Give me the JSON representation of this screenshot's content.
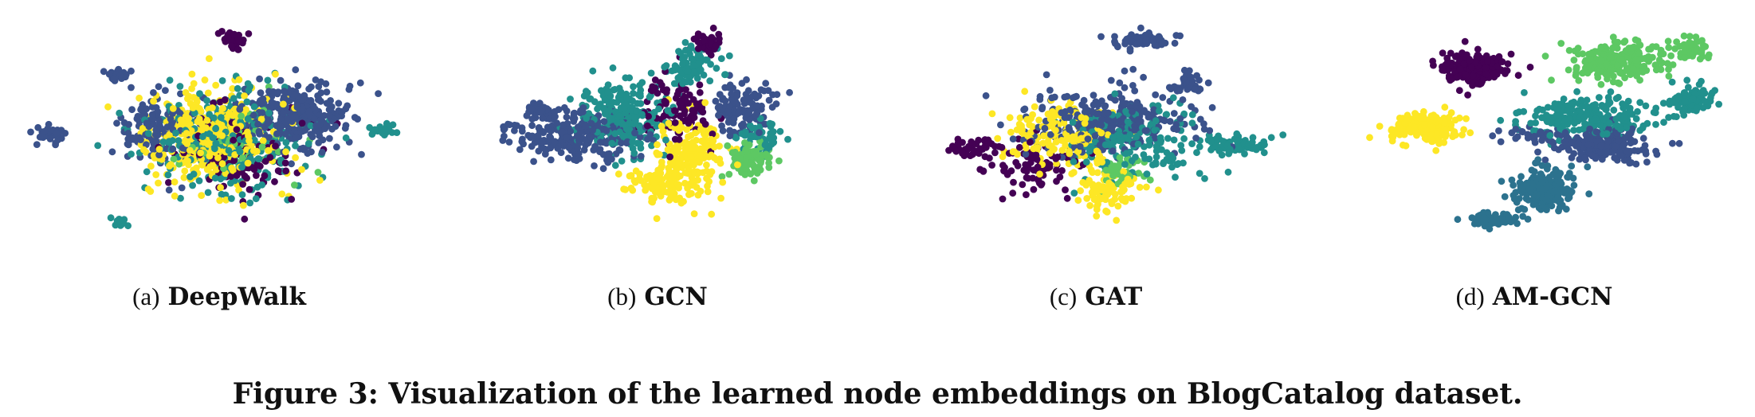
{
  "figure": {
    "caption": "Figure 3: Visualization of the learned node embeddings on BlogCatalog dataset."
  },
  "palette": [
    "#440154",
    "#3b528b",
    "#21908d",
    "#5dc863",
    "#fde725",
    "#2c728e"
  ],
  "chart_data": [
    {
      "type": "scatter",
      "sub_label": "(a)",
      "method": "DeepWalk",
      "xlabel": "",
      "ylabel": "",
      "grid": false,
      "legend": "none",
      "xlim": [
        0,
        100
      ],
      "ylim": [
        0,
        100
      ],
      "clusters": [
        {
          "class": 1,
          "x": 68,
          "y": 58,
          "sx": 12,
          "sy": 12,
          "n": 320
        },
        {
          "class": 4,
          "x": 47,
          "y": 50,
          "sx": 15,
          "sy": 17,
          "n": 300
        },
        {
          "class": 2,
          "x": 52,
          "y": 48,
          "sx": 17,
          "sy": 18,
          "n": 300
        },
        {
          "class": 0,
          "x": 55,
          "y": 42,
          "sx": 14,
          "sy": 16,
          "n": 120
        },
        {
          "class": 1,
          "x": 36,
          "y": 52,
          "sx": 10,
          "sy": 14,
          "n": 120
        },
        {
          "class": 3,
          "x": 55,
          "y": 47,
          "sx": 14,
          "sy": 15,
          "n": 50
        },
        {
          "class": 0,
          "x": 53,
          "y": 89,
          "sx": 3,
          "sy": 4,
          "n": 35
        },
        {
          "class": 1,
          "x": 26,
          "y": 74,
          "sx": 2.5,
          "sy": 2.5,
          "n": 30
        },
        {
          "class": 1,
          "x": 9,
          "y": 50,
          "sx": 3,
          "sy": 3,
          "n": 35
        },
        {
          "class": 2,
          "x": 89,
          "y": 52,
          "sx": 3,
          "sy": 2,
          "n": 25
        },
        {
          "class": 2,
          "x": 26,
          "y": 15,
          "sx": 2,
          "sy": 2,
          "n": 15
        },
        {
          "class": 4,
          "x": 53,
          "y": 46,
          "sx": 15,
          "sy": 17,
          "n": 60
        }
      ]
    },
    {
      "type": "scatter",
      "sub_label": "(b)",
      "method": "GCN",
      "xlabel": "",
      "ylabel": "",
      "grid": false,
      "legend": "none",
      "xlim": [
        0,
        100
      ],
      "ylim": [
        0,
        100
      ],
      "clusters": [
        {
          "class": 1,
          "x": 30,
          "y": 50,
          "sx": 14,
          "sy": 10,
          "n": 260
        },
        {
          "class": 2,
          "x": 42,
          "y": 58,
          "sx": 10,
          "sy": 14,
          "n": 220
        },
        {
          "class": 4,
          "x": 58,
          "y": 42,
          "sx": 8,
          "sy": 14,
          "n": 190
        },
        {
          "class": 0,
          "x": 55,
          "y": 62,
          "sx": 8,
          "sy": 12,
          "n": 100
        },
        {
          "class": 3,
          "x": 72,
          "y": 40,
          "sx": 5,
          "sy": 7,
          "n": 70
        },
        {
          "class": 1,
          "x": 70,
          "y": 62,
          "sx": 7,
          "sy": 9,
          "n": 120
        },
        {
          "class": 2,
          "x": 58,
          "y": 78,
          "sx": 5,
          "sy": 8,
          "n": 80
        },
        {
          "class": 0,
          "x": 62,
          "y": 88,
          "sx": 3,
          "sy": 4,
          "n": 40
        },
        {
          "class": 1,
          "x": 22,
          "y": 60,
          "sx": 3,
          "sy": 2,
          "n": 30
        },
        {
          "class": 4,
          "x": 50,
          "y": 30,
          "sx": 8,
          "sy": 6,
          "n": 70
        },
        {
          "class": 2,
          "x": 75,
          "y": 50,
          "sx": 5,
          "sy": 6,
          "n": 50
        }
      ]
    },
    {
      "type": "scatter",
      "sub_label": "(c)",
      "method": "GAT",
      "xlabel": "",
      "ylabel": "",
      "grid": false,
      "legend": "none",
      "xlim": [
        0,
        100
      ],
      "ylim": [
        0,
        100
      ],
      "clusters": [
        {
          "class": 1,
          "x": 52,
          "y": 55,
          "sx": 17,
          "sy": 12,
          "n": 300
        },
        {
          "class": 4,
          "x": 42,
          "y": 50,
          "sx": 11,
          "sy": 12,
          "n": 170
        },
        {
          "class": 2,
          "x": 60,
          "y": 48,
          "sx": 14,
          "sy": 14,
          "n": 170
        },
        {
          "class": 0,
          "x": 35,
          "y": 38,
          "sx": 10,
          "sy": 9,
          "n": 90
        },
        {
          "class": 4,
          "x": 54,
          "y": 28,
          "sx": 7,
          "sy": 8,
          "n": 80
        },
        {
          "class": 3,
          "x": 56,
          "y": 35,
          "sx": 6,
          "sy": 6,
          "n": 40
        },
        {
          "class": 2,
          "x": 84,
          "y": 46,
          "sx": 7,
          "sy": 3,
          "n": 70
        },
        {
          "class": 1,
          "x": 61,
          "y": 88,
          "sx": 8,
          "sy": 3,
          "n": 70
        },
        {
          "class": 1,
          "x": 72,
          "y": 70,
          "sx": 4,
          "sy": 5,
          "n": 40
        },
        {
          "class": 0,
          "x": 20,
          "y": 45,
          "sx": 5,
          "sy": 4,
          "n": 40
        }
      ]
    },
    {
      "type": "scatter",
      "sub_label": "(d)",
      "method": "AM-GCN",
      "xlabel": "",
      "ylabel": "",
      "grid": false,
      "legend": "none",
      "xlim": [
        0,
        100
      ],
      "ylim": [
        0,
        100
      ],
      "clusters": [
        {
          "class": 0,
          "x": 36,
          "y": 77,
          "sx": 7,
          "sy": 6,
          "n": 220
        },
        {
          "class": 3,
          "x": 70,
          "y": 80,
          "sx": 11,
          "sy": 7,
          "n": 240
        },
        {
          "class": 4,
          "x": 24,
          "y": 53,
          "sx": 8,
          "sy": 5,
          "n": 200
        },
        {
          "class": 2,
          "x": 62,
          "y": 58,
          "sx": 16,
          "sy": 7,
          "n": 230
        },
        {
          "class": 2,
          "x": 88,
          "y": 65,
          "sx": 6,
          "sy": 5,
          "n": 80
        },
        {
          "class": 1,
          "x": 67,
          "y": 46,
          "sx": 10,
          "sy": 6,
          "n": 200
        },
        {
          "class": 5,
          "x": 52,
          "y": 28,
          "sx": 7,
          "sy": 8,
          "n": 200
        },
        {
          "class": 5,
          "x": 40,
          "y": 16,
          "sx": 7,
          "sy": 3,
          "n": 60
        },
        {
          "class": 3,
          "x": 88,
          "y": 85,
          "sx": 4,
          "sy": 4,
          "n": 40
        },
        {
          "class": 1,
          "x": 52,
          "y": 50,
          "sx": 8,
          "sy": 4,
          "n": 40
        }
      ]
    }
  ]
}
